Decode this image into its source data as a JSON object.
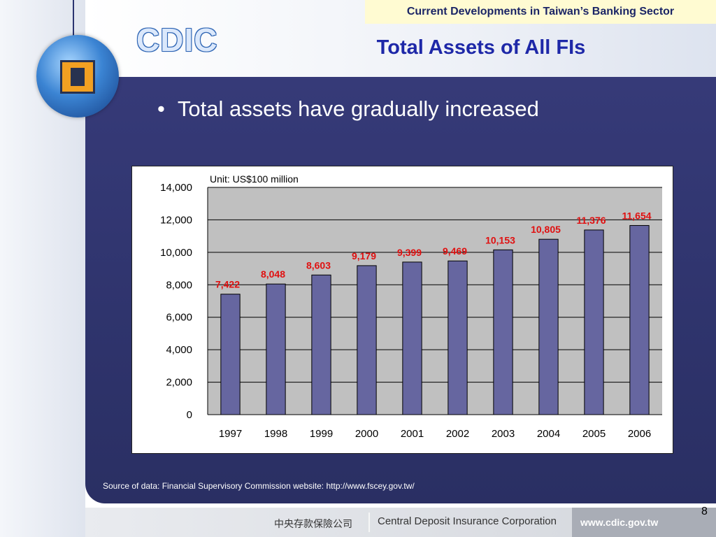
{
  "header": {
    "banner": "Current Developments in Taiwan’s Banking Sector",
    "title": "Total Assets of All FIs",
    "brand": "CDIC"
  },
  "bullet": {
    "text": "Total assets have gradually increased",
    "marker": "•"
  },
  "chart_data": {
    "type": "bar",
    "unit_note": "Unit: US$100 million",
    "categories": [
      "1997",
      "1998",
      "1999",
      "2000",
      "2001",
      "2002",
      "2003",
      "2004",
      "2005",
      "2006"
    ],
    "values": [
      7422,
      8048,
      8603,
      9179,
      9399,
      9469,
      10153,
      10805,
      11376,
      11654
    ],
    "value_labels": [
      "7,422",
      "8,048",
      "8,603",
      "9,179",
      "9,399",
      "9,469",
      "10,153",
      "10,805",
      "11,376",
      "11,654"
    ],
    "ylim": [
      0,
      14000
    ],
    "yticks": [
      0,
      2000,
      4000,
      6000,
      8000,
      10000,
      12000,
      14000
    ],
    "ytick_labels": [
      "0",
      "2,000",
      "4,000",
      "6,000",
      "8,000",
      "10,000",
      "12,000",
      "14,000"
    ],
    "grid": true,
    "colors": {
      "bar": "#6666a0",
      "plot_bg": "#c0c0c0",
      "value_label": "#e01010"
    }
  },
  "source": "Source of data: Financial Supervisory Commission website: http://www.fscey.gov.tw/",
  "page_number": "8",
  "footer": {
    "chinese_name": "中央存款保險公司",
    "english_name": "Central Deposit Insurance Corporation",
    "url": "www.cdic.gov.tw"
  },
  "colors": {
    "panel": "#30356e",
    "title": "#1e28a8",
    "banner_bg": "#fffbd2"
  }
}
